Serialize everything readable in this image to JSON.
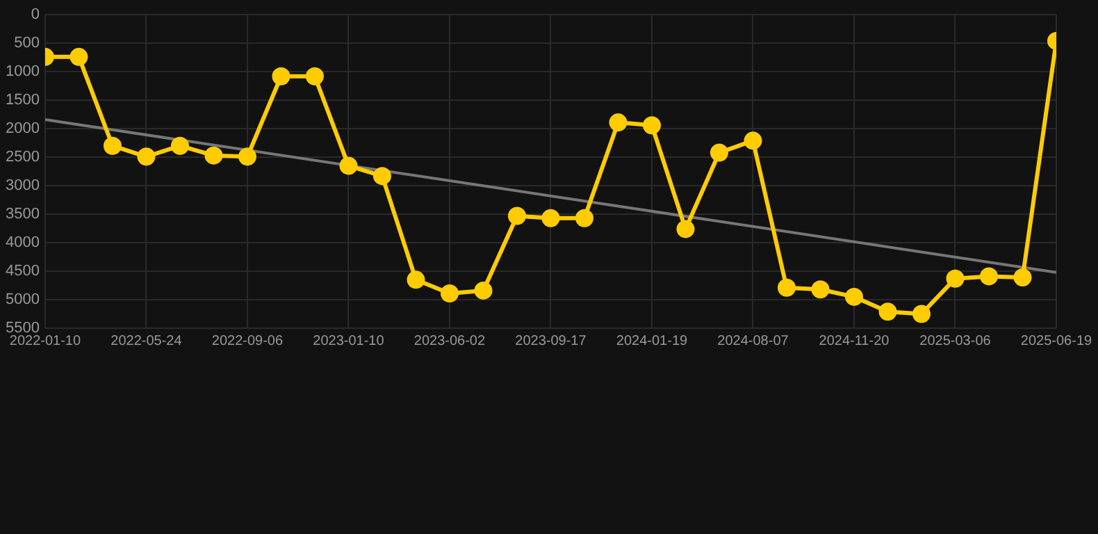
{
  "chart_data": {
    "type": "line",
    "categories": [
      "2022-01-10",
      null,
      null,
      "2022-05-24",
      null,
      null,
      "2022-09-06",
      null,
      null,
      "2023-01-10",
      null,
      null,
      "2023-06-02",
      null,
      null,
      "2023-09-17",
      null,
      null,
      "2024-01-19",
      null,
      null,
      "2024-08-07",
      null,
      null,
      "2024-11-20",
      null,
      null,
      "2025-03-06",
      null,
      null,
      "2025-06-19"
    ],
    "series": [
      {
        "color": "#ffcc00",
        "marker": "circle",
        "values": [
          740,
          740,
          2300,
          2490,
          2300,
          2470,
          2490,
          1080,
          1080,
          2650,
          2830,
          4650,
          4890,
          4840,
          3530,
          3570,
          3570,
          1890,
          1940,
          3760,
          2420,
          2210,
          4790,
          4820,
          4950,
          5210,
          5250,
          4630,
          4590,
          4610,
          460
        ]
      },
      {
        "type": "line",
        "color": "#777777",
        "marker": "none",
        "values": [
          1840,
          null,
          null,
          null,
          null,
          null,
          null,
          null,
          null,
          null,
          null,
          null,
          null,
          null,
          null,
          null,
          null,
          null,
          null,
          null,
          null,
          null,
          null,
          null,
          null,
          null,
          null,
          null,
          null,
          null,
          4520
        ]
      }
    ],
    "ylim": [
      5500,
      0
    ],
    "yticks": [
      0,
      500,
      1000,
      1500,
      2000,
      2500,
      3000,
      3500,
      4000,
      4500,
      5000,
      5500
    ],
    "grid": true,
    "legend": false
  }
}
